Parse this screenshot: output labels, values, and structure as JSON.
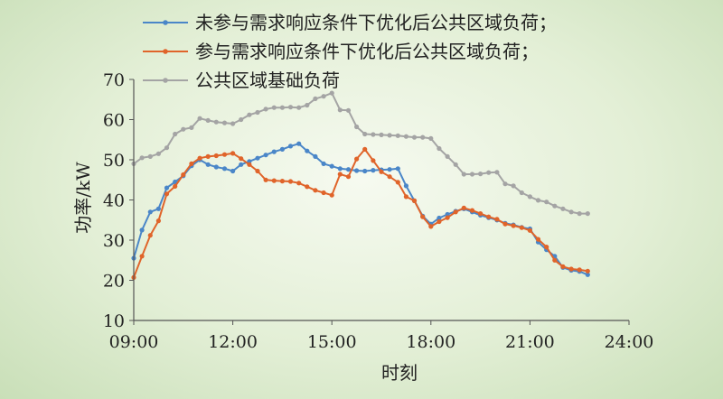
{
  "chart_data": {
    "type": "line",
    "title": "",
    "xlabel": "时刻",
    "ylabel": "功率/kW",
    "xlim": [
      9,
      24
    ],
    "ylim": [
      10,
      70
    ],
    "xticks": [
      9,
      12,
      15,
      18,
      21,
      24
    ],
    "xtick_labels": [
      "09:00",
      "12:00",
      "15:00",
      "18:00",
      "21:00",
      "24:00"
    ],
    "yticks": [
      10,
      20,
      30,
      40,
      50,
      60,
      70
    ],
    "ytick_labels": [
      "10",
      "20",
      "30",
      "40",
      "50",
      "60",
      "70"
    ],
    "grid": false,
    "legend_position": "top",
    "x": [
      9.0,
      9.25,
      9.5,
      9.75,
      10.0,
      10.25,
      10.5,
      10.75,
      11.0,
      11.25,
      11.5,
      11.75,
      12.0,
      12.25,
      12.5,
      12.75,
      13.0,
      13.25,
      13.5,
      13.75,
      14.0,
      14.25,
      14.5,
      14.75,
      15.0,
      15.25,
      15.5,
      15.75,
      16.0,
      16.25,
      16.5,
      16.75,
      17.0,
      17.25,
      17.5,
      17.75,
      18.0,
      18.25,
      18.5,
      18.75,
      19.0,
      19.25,
      19.5,
      19.75,
      20.0,
      20.25,
      20.5,
      20.75,
      21.0,
      21.25,
      21.5,
      21.75,
      22.0,
      22.25,
      22.5,
      22.75
    ],
    "series": [
      {
        "name": "未参与需求响应条件下优化后公共区域负荷；",
        "color": "#4a86c8",
        "values": [
          25.5,
          32.5,
          37.0,
          37.8,
          43.0,
          44.5,
          46.0,
          48.5,
          50.0,
          48.8,
          48.2,
          47.8,
          47.2,
          48.8,
          49.6,
          50.4,
          51.2,
          52.0,
          52.6,
          53.4,
          54.0,
          52.2,
          50.8,
          49.0,
          48.4,
          47.8,
          47.6,
          47.3,
          47.2,
          47.4,
          47.5,
          47.6,
          47.8,
          43.5,
          39.8,
          36.0,
          34.0,
          35.5,
          36.4,
          37.2,
          37.8,
          37.0,
          36.2,
          35.6,
          35.0,
          34.2,
          33.8,
          33.2,
          32.8,
          29.5,
          27.6,
          26.0,
          23.2,
          22.5,
          22.2,
          21.4
        ]
      },
      {
        "name": "参与需求响应条件下优化后公共区域负荷；",
        "color": "#e0642a",
        "values": [
          20.7,
          26.0,
          31.2,
          34.8,
          41.5,
          43.4,
          46.3,
          49.0,
          50.4,
          50.8,
          51.0,
          51.3,
          51.6,
          50.3,
          48.8,
          47.2,
          45.0,
          44.8,
          44.7,
          44.6,
          44.2,
          43.3,
          42.4,
          41.8,
          41.2,
          46.4,
          45.8,
          50.2,
          52.6,
          49.8,
          47.0,
          45.8,
          44.4,
          40.8,
          39.8,
          35.8,
          33.4,
          34.6,
          35.6,
          37.0,
          38.0,
          37.4,
          36.6,
          35.8,
          35.2,
          34.0,
          33.6,
          33.1,
          32.4,
          30.2,
          28.3,
          25.0,
          23.4,
          22.8,
          22.6,
          22.3
        ]
      },
      {
        "name": "公共区域基础负荷",
        "color": "#a4a4a4",
        "values": [
          49.0,
          50.5,
          50.8,
          51.5,
          53.0,
          56.4,
          57.6,
          58.0,
          60.3,
          59.8,
          59.4,
          59.2,
          59.0,
          60.0,
          61.2,
          61.8,
          62.6,
          63.0,
          63.0,
          63.1,
          63.0,
          63.6,
          65.2,
          65.8,
          66.6,
          62.4,
          62.3,
          58.2,
          56.4,
          56.3,
          56.2,
          56.1,
          56.0,
          55.8,
          55.6,
          55.6,
          55.3,
          52.8,
          50.8,
          48.8,
          46.4,
          46.4,
          46.5,
          46.8,
          46.9,
          44.0,
          43.5,
          41.8,
          40.8,
          39.9,
          39.5,
          38.5,
          37.8,
          37.0,
          36.6,
          36.6
        ]
      }
    ]
  }
}
